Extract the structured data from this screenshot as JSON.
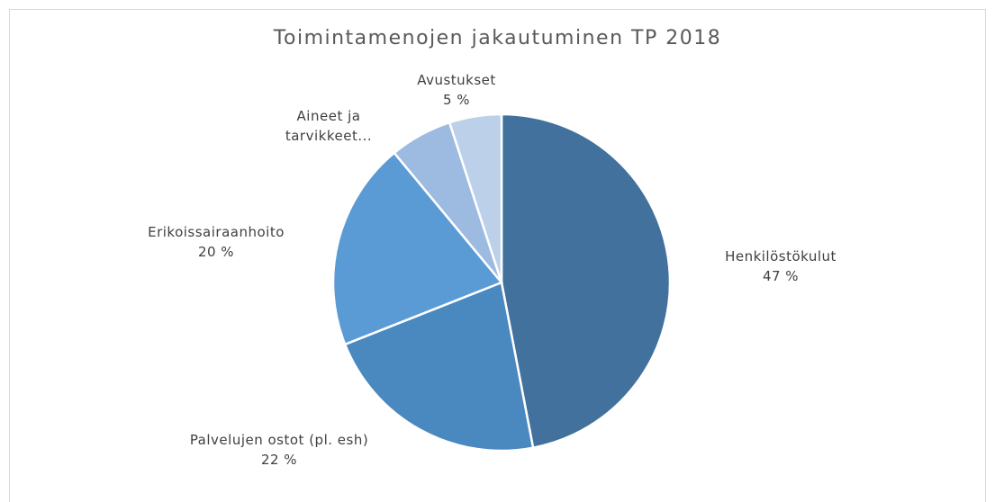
{
  "chart_data": {
    "type": "pie",
    "title": "Toimintamenojen jakautuminen TP 2018",
    "categories": [
      "Henkilöstökulut",
      "Palvelujen ostot (pl. esh)",
      "Erikoissairaanhoito",
      "Aineet ja tarvikkeet...",
      "Avustukset"
    ],
    "values": [
      47,
      22,
      20,
      6,
      5
    ],
    "value_labels": [
      "47 %",
      "22 %",
      "20 %",
      null,
      "5 %"
    ],
    "colors": [
      "#41719c",
      "#4a88c0",
      "#5b9bd5",
      "#9dbbe0",
      "#bdd0ea"
    ]
  }
}
